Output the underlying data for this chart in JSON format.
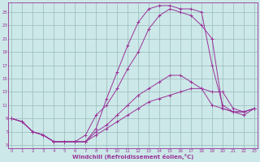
{
  "xlabel": "Windchill (Refroidissement éolien,°C)",
  "bg_color": "#cce8e8",
  "line_color": "#993399",
  "grid_color": "#99bbbb",
  "xlim_min": -0.3,
  "xlim_max": 23.3,
  "ylim_min": 4.5,
  "ylim_max": 26.5,
  "xticks": [
    0,
    1,
    2,
    3,
    4,
    5,
    6,
    7,
    8,
    9,
    10,
    11,
    12,
    13,
    14,
    15,
    16,
    17,
    18,
    19,
    20,
    21,
    22,
    23
  ],
  "yticks": [
    5,
    7,
    9,
    11,
    13,
    15,
    17,
    19,
    21,
    23,
    25
  ],
  "series": [
    [
      9.0,
      8.5,
      7.0,
      6.5,
      5.5,
      5.5,
      5.5,
      5.5,
      6.5,
      7.5,
      8.5,
      9.5,
      10.5,
      11.5,
      12.0,
      12.5,
      13.0,
      13.5,
      13.5,
      13.0,
      13.0,
      10.5,
      10.0,
      10.5
    ],
    [
      9.0,
      8.5,
      7.0,
      6.5,
      5.5,
      5.5,
      5.5,
      5.5,
      7.0,
      8.0,
      9.5,
      11.0,
      12.5,
      13.5,
      14.5,
      15.5,
      15.5,
      14.5,
      13.5,
      11.0,
      10.5,
      10.0,
      10.0,
      10.5
    ],
    [
      9.0,
      8.5,
      7.0,
      6.5,
      5.5,
      5.5,
      5.5,
      6.5,
      9.5,
      11.0,
      13.5,
      16.5,
      19.0,
      22.5,
      24.5,
      25.5,
      25.0,
      24.5,
      23.0,
      21.0,
      10.5,
      10.0,
      10.0,
      10.5
    ],
    [
      9.0,
      8.5,
      7.0,
      6.5,
      5.5,
      5.5,
      5.5,
      5.5,
      7.5,
      12.0,
      16.0,
      20.0,
      23.5,
      25.5,
      26.0,
      26.0,
      25.5,
      25.5,
      25.0,
      17.0,
      11.0,
      10.0,
      9.5,
      10.5
    ]
  ]
}
